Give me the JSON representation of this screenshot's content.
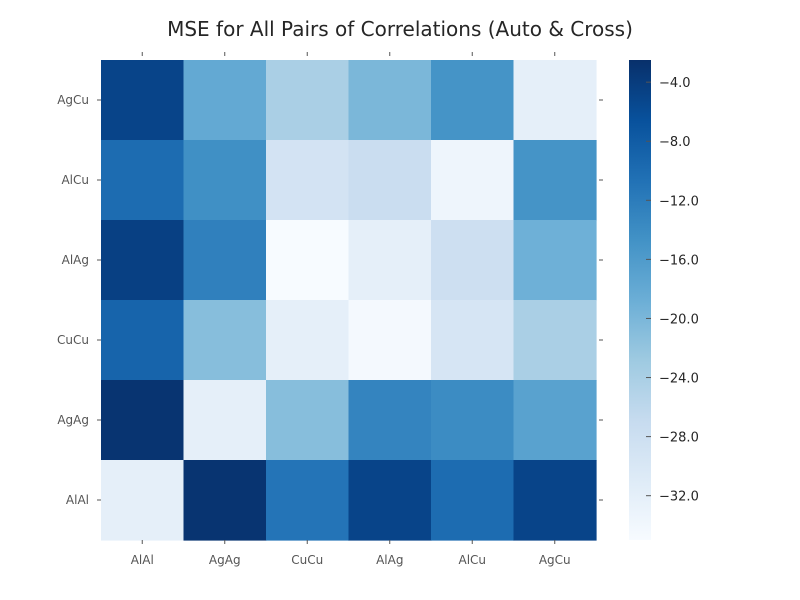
{
  "chart_data": {
    "type": "heatmap",
    "title": "MSE for All Pairs of Correlations (Auto & Cross)",
    "xlabel": "",
    "ylabel": "",
    "x_categories": [
      "AlAl",
      "AgAg",
      "CuCu",
      "AlAg",
      "AlCu",
      "AgCu"
    ],
    "y_categories_top_to_bottom": [
      "AgCu",
      "AlCu",
      "AlAg",
      "CuCu",
      "AgAg",
      "AlAl"
    ],
    "values_top_to_bottom": [
      [
        -5.0,
        -18.0,
        -24.0,
        -20.0,
        -15.0,
        -32.0
      ],
      [
        -10.0,
        -14.5,
        -29.0,
        -27.5,
        -33.5,
        -15.0
      ],
      [
        -4.5,
        -12.5,
        -35.0,
        -32.0,
        -28.0,
        -19.0
      ],
      [
        -9.0,
        -21.0,
        -32.0,
        -34.5,
        -29.5,
        -24.0
      ],
      [
        -3.0,
        -32.0,
        -21.0,
        -13.0,
        -14.0,
        -17.0
      ],
      [
        -32.0,
        -3.0,
        -11.0,
        -5.0,
        -10.0,
        -5.0
      ]
    ],
    "colormap": "Blues_r",
    "vmin": -35.0,
    "vmax": -2.5,
    "colorbar": {
      "ticks": [
        -32.0,
        -28.0,
        -24.0,
        -20.0,
        -16.0,
        -12.0,
        -8.0,
        -4.0
      ],
      "tick_labels": [
        "−32.0",
        "−28.0",
        "−24.0",
        "−20.0",
        "−16.0",
        "−12.0",
        "−8.0",
        "−4.0"
      ],
      "placement": "right"
    },
    "grid": false
  },
  "colors": {
    "scale": [
      "#f7fbff",
      "#deebf7",
      "#c6dbef",
      "#9ecae1",
      "#6baed6",
      "#4292c6",
      "#2171b5",
      "#08519c",
      "#08306b"
    ],
    "text": "#262626",
    "tick_text": "#555555"
  }
}
